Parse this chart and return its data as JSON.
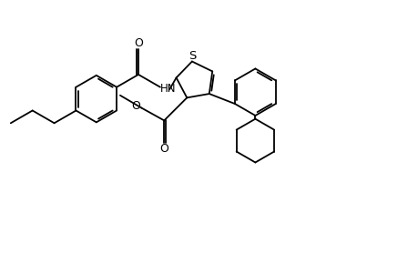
{
  "bg": "#ffffff",
  "lc": "#000000",
  "lw": 1.3,
  "figsize": [
    4.6,
    3.0
  ],
  "dpi": 100,
  "xlim": [
    -2,
    48
  ],
  "ylim": [
    0,
    30
  ]
}
